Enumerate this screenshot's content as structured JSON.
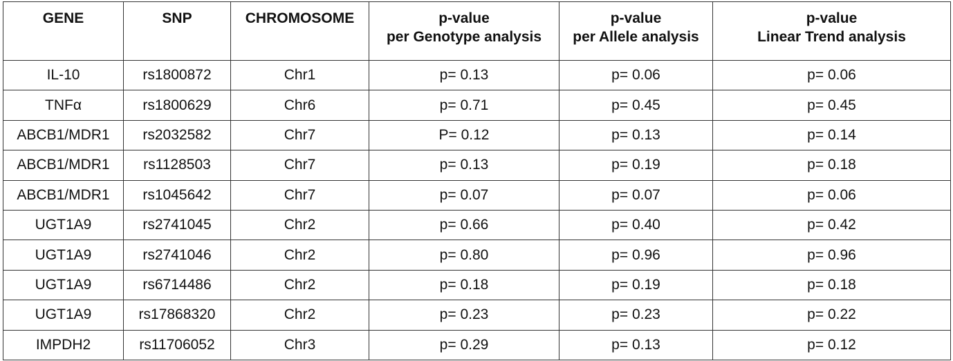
{
  "table": {
    "header": [
      [
        "GENE"
      ],
      [
        "SNP"
      ],
      [
        "CHROMOSOME"
      ],
      [
        "p-value",
        "per Genotype analysis"
      ],
      [
        "p-value",
        "per Allele analysis"
      ],
      [
        "p-value",
        "Linear Trend analysis"
      ]
    ],
    "rows": [
      [
        "IL-10",
        "rs1800872",
        "Chr1",
        "p= 0.13",
        "p= 0.06",
        "p= 0.06"
      ],
      [
        "TNFα",
        "rs1800629",
        "Chr6",
        "p= 0.71",
        "p= 0.45",
        "p= 0.45"
      ],
      [
        "ABCB1/MDR1",
        "rs2032582",
        "Chr7",
        "P= 0.12",
        "p= 0.13",
        "p= 0.14"
      ],
      [
        "ABCB1/MDR1",
        "rs1128503",
        "Chr7",
        "p= 0.13",
        "p= 0.19",
        "p= 0.18"
      ],
      [
        "ABCB1/MDR1",
        "rs1045642",
        "Chr7",
        "p= 0.07",
        "p= 0.07",
        "p= 0.06"
      ],
      [
        "UGT1A9",
        "rs2741045",
        "Chr2",
        "p= 0.66",
        "p= 0.40",
        "p= 0.42"
      ],
      [
        "UGT1A9",
        "rs2741046",
        "Chr2",
        "p= 0.80",
        "p= 0.96",
        "p= 0.96"
      ],
      [
        "UGT1A9",
        "rs6714486",
        "Chr2",
        "p= 0.18",
        "p= 0.19",
        "p= 0.18"
      ],
      [
        "UGT1A9",
        "rs17868320",
        "Chr2",
        "p= 0.23",
        "p= 0.23",
        "p= 0.22"
      ],
      [
        "IMPDH2",
        "rs11706052",
        "Chr3",
        "p= 0.29",
        "p= 0.13",
        "p= 0.12"
      ]
    ]
  }
}
